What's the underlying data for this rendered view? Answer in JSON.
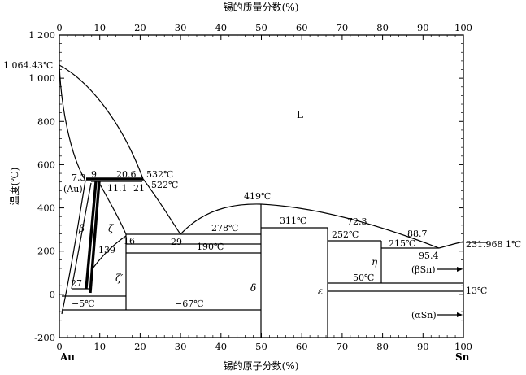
{
  "chart_data": {
    "type": "phase-diagram",
    "top_axis_label": "锡的质量分数(%)",
    "bottom_axis_label": "锡的原子分数(%)",
    "y_axis_label": "温度(℃)",
    "x_ticks": [
      "0",
      "10",
      "20",
      "30",
      "40",
      "50",
      "60",
      "70",
      "80",
      "90",
      "100"
    ],
    "top_ticks": [
      "0",
      "10",
      "20",
      "30",
      "40",
      "50",
      "60",
      "70",
      "80",
      "90",
      "100"
    ],
    "top_tick_values": [
      0,
      10,
      20,
      30,
      40,
      50,
      60,
      70,
      80,
      90,
      100
    ],
    "y_ticks": [
      "-200",
      "0",
      "200",
      "400",
      "600",
      "800",
      "1 000",
      "1 200"
    ],
    "x_range": [
      0,
      100
    ],
    "y_range": [
      -200,
      1200
    ],
    "end_labels": {
      "left": "Au",
      "right": "Sn"
    },
    "phases": {
      "liquid": "L",
      "beta": "β",
      "zeta": "ζ",
      "zeta_prime": "ζ′",
      "delta": "δ",
      "epsilon": "ε",
      "eta": "η",
      "beta_sn": "(βSn)",
      "alpha_sn": "(αSn)",
      "au": "(Au)"
    },
    "annotations": {
      "au_melt": "1 064.43℃",
      "sn_melt": "231.968 1℃",
      "t532": "532℃",
      "t522": "522℃",
      "t419": "419℃",
      "t311": "311℃",
      "t278": "278℃",
      "t252": "252℃",
      "t215": "215℃",
      "t190": "190℃",
      "t50": "50℃",
      "t13": "13℃",
      "tm5": "−5℃",
      "tm67": "−67℃",
      "c7_3": "7.3",
      "c9": "9",
      "c20_6": "20.6",
      "c11_1": "11.1",
      "c21": "21",
      "c16": "16",
      "c139": "139",
      "c29": "29",
      "c27": "27",
      "c72_3": "72.3",
      "c88_7": "88.7",
      "c95_4": "95.4"
    }
  }
}
